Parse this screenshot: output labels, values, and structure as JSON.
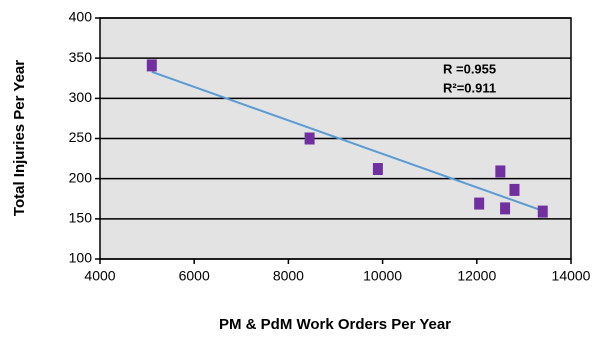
{
  "chart_data": {
    "type": "scatter",
    "x_label": "PM & PdM Work Orders Per Year",
    "y_label": "Total Injuries Per Year",
    "x": [
      5100,
      8450,
      9900,
      12050,
      12500,
      12600,
      12800,
      13400
    ],
    "values": [
      341,
      250,
      212,
      169,
      209,
      163,
      186,
      159
    ],
    "color": "#7030a0",
    "trendline": {
      "x": [
        5100,
        13400
      ],
      "values": [
        333,
        160
      ],
      "color": "#5b9bd5"
    },
    "annotations": [
      "R =0.955",
      "R²=0.911"
    ],
    "xlim": [
      4000,
      14000
    ],
    "xticks": [
      4000,
      6000,
      8000,
      10000,
      12000,
      14000
    ],
    "ylim": [
      100,
      400
    ],
    "yticks": [
      100,
      150,
      200,
      250,
      300,
      350,
      400
    ],
    "grid": true
  }
}
